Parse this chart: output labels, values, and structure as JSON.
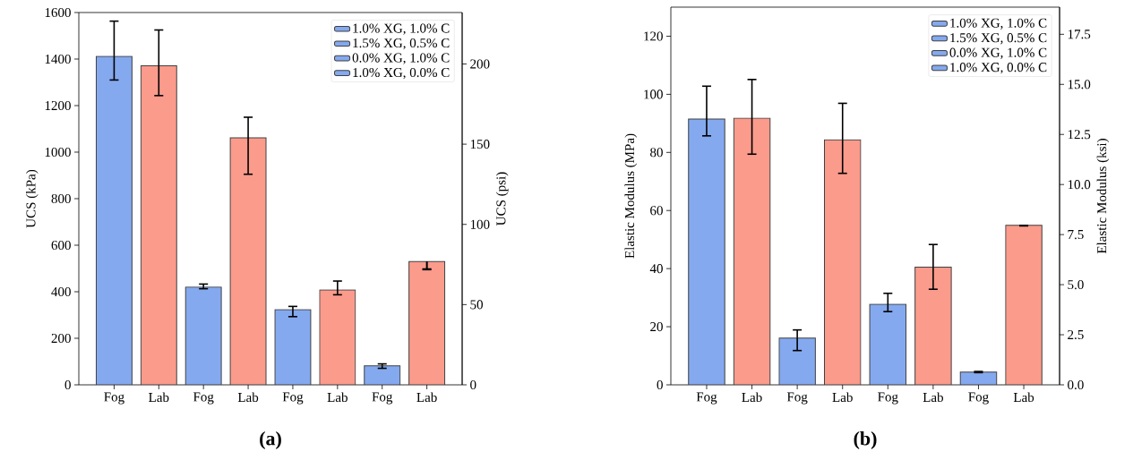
{
  "chart_data": [
    {
      "type": "bar",
      "categories": [
        "Fog",
        "Lab",
        "Fog",
        "Lab",
        "Fog",
        "Lab",
        "Fog",
        "Lab"
      ],
      "ylabel": "UCS (kPa)",
      "y2label": "UCS (psi)",
      "ylim": [
        0,
        1600
      ],
      "yticks": [
        0,
        200,
        400,
        600,
        800,
        1000,
        1200,
        1400,
        1600
      ],
      "y2lim": [
        0,
        232.06
      ],
      "y2ticks": [
        0,
        50,
        100,
        150,
        200
      ],
      "legend": "top right",
      "annotations": [
        "(a)"
      ],
      "series": [
        {
          "name": "1.0% XG, 1.0% C",
          "color": "#84a9ef",
          "colors": [
            "#84a9ef",
            "#fa9b8c",
            null,
            null,
            null,
            null,
            null,
            null
          ],
          "values": [
            1412,
            1371,
            null,
            null,
            null,
            null,
            null,
            null
          ],
          "errors": [
            [
              1310,
              1563
            ],
            [
              1243,
              1525
            ],
            null,
            null,
            null,
            null,
            null,
            null
          ]
        },
        {
          "name": "1.5% XG, 0.5% C",
          "color": "#84a9ef",
          "colors": [
            null,
            null,
            "#84a9ef",
            "#fa9b8c",
            null,
            null,
            null,
            null
          ],
          "values": [
            null,
            null,
            420,
            1062,
            null,
            null,
            null,
            null
          ],
          "errors": [
            null,
            null,
            [
              413,
              433
            ],
            [
              905,
              1150
            ],
            null,
            null,
            null,
            null
          ]
        },
        {
          "name": "0.0% XG, 1.0% C",
          "color": "#84a9ef",
          "colors": [
            null,
            null,
            null,
            null,
            "#84a9ef",
            "#fa9b8c",
            null,
            null
          ],
          "values": [
            null,
            null,
            null,
            null,
            323,
            408,
            null,
            null
          ],
          "errors": [
            null,
            null,
            null,
            null,
            [
              293,
              337
            ],
            [
              387,
              446
            ],
            null,
            null
          ]
        },
        {
          "name": "1.0% XG, 0.0% C",
          "color": "#84a9ef",
          "colors": [
            null,
            null,
            null,
            null,
            null,
            null,
            "#84a9ef",
            "#fa9b8c"
          ],
          "values": [
            null,
            null,
            null,
            null,
            null,
            null,
            82,
            530
          ],
          "errors": [
            null,
            null,
            null,
            null,
            null,
            null,
            [
              71,
              90
            ],
            [
              495,
              498
            ]
          ]
        }
      ]
    },
    {
      "type": "bar",
      "categories": [
        "Fog",
        "Lab",
        "Fog",
        "Lab",
        "Fog",
        "Lab",
        "Fog",
        "Lab"
      ],
      "ylabel": "Elastic Modulus (MPa)",
      "y2label": "Elastic Modulus (ksi)",
      "ylim": [
        0,
        130
      ],
      "yticks": [
        0,
        20,
        40,
        60,
        80,
        100,
        120
      ],
      "y2lim": [
        0,
        18.855
      ],
      "y2ticks": [
        {
          "value": 0,
          "label": "0.0"
        },
        {
          "value": 2.5,
          "label": "2.5"
        },
        {
          "value": 5,
          "label": "5.0"
        },
        {
          "value": 7.5,
          "label": "7.5"
        },
        {
          "value": 10,
          "label": "10.0"
        },
        {
          "value": 12.5,
          "label": "12.5"
        },
        {
          "value": 15,
          "label": "15.0"
        },
        {
          "value": 17.5,
          "label": "17.5"
        }
      ],
      "legend": "top right",
      "annotations": [
        "(b)"
      ],
      "series": [
        {
          "name": "1.0% XG, 1.0% C",
          "color": "#84a9ef",
          "colors": [
            "#84a9ef",
            "#fa9b8c",
            null,
            null,
            null,
            null,
            null,
            null
          ],
          "values": [
            91.5,
            91.8,
            null,
            null,
            null,
            null,
            null,
            null
          ],
          "errors": [
            [
              85.7,
              102.8
            ],
            [
              79.4,
              105.1
            ],
            null,
            null,
            null,
            null,
            null,
            null
          ]
        },
        {
          "name": "1.5% XG, 0.5% C",
          "color": "#84a9ef",
          "colors": [
            null,
            null,
            "#84a9ef",
            "#fa9b8c",
            null,
            null,
            null,
            null
          ],
          "values": [
            null,
            null,
            16.1,
            84.3,
            null,
            null,
            null,
            null
          ],
          "errors": [
            null,
            null,
            [
              11.8,
              18.9
            ],
            [
              72.8,
              96.9
            ],
            null,
            null,
            null,
            null
          ]
        },
        {
          "name": "0.0% XG, 1.0% C",
          "color": "#84a9ef",
          "colors": [
            null,
            null,
            null,
            null,
            "#84a9ef",
            "#fa9b8c",
            null,
            null
          ],
          "values": [
            null,
            null,
            null,
            null,
            27.7,
            40.5,
            null,
            null
          ],
          "errors": [
            null,
            null,
            null,
            null,
            [
              25.2,
              31.5
            ],
            [
              32.9,
              48.3
            ],
            null,
            null
          ]
        },
        {
          "name": "1.0% XG, 0.0% C",
          "color": "#84a9ef",
          "colors": [
            null,
            null,
            null,
            null,
            null,
            null,
            "#84a9ef",
            "#fa9b8c"
          ],
          "values": [
            null,
            null,
            null,
            null,
            null,
            null,
            4.4,
            54.9
          ],
          "errors": [
            null,
            null,
            null,
            null,
            null,
            null,
            [
              4.2,
              4.6
            ],
            [
              54.7,
              54.9
            ]
          ]
        }
      ]
    }
  ]
}
